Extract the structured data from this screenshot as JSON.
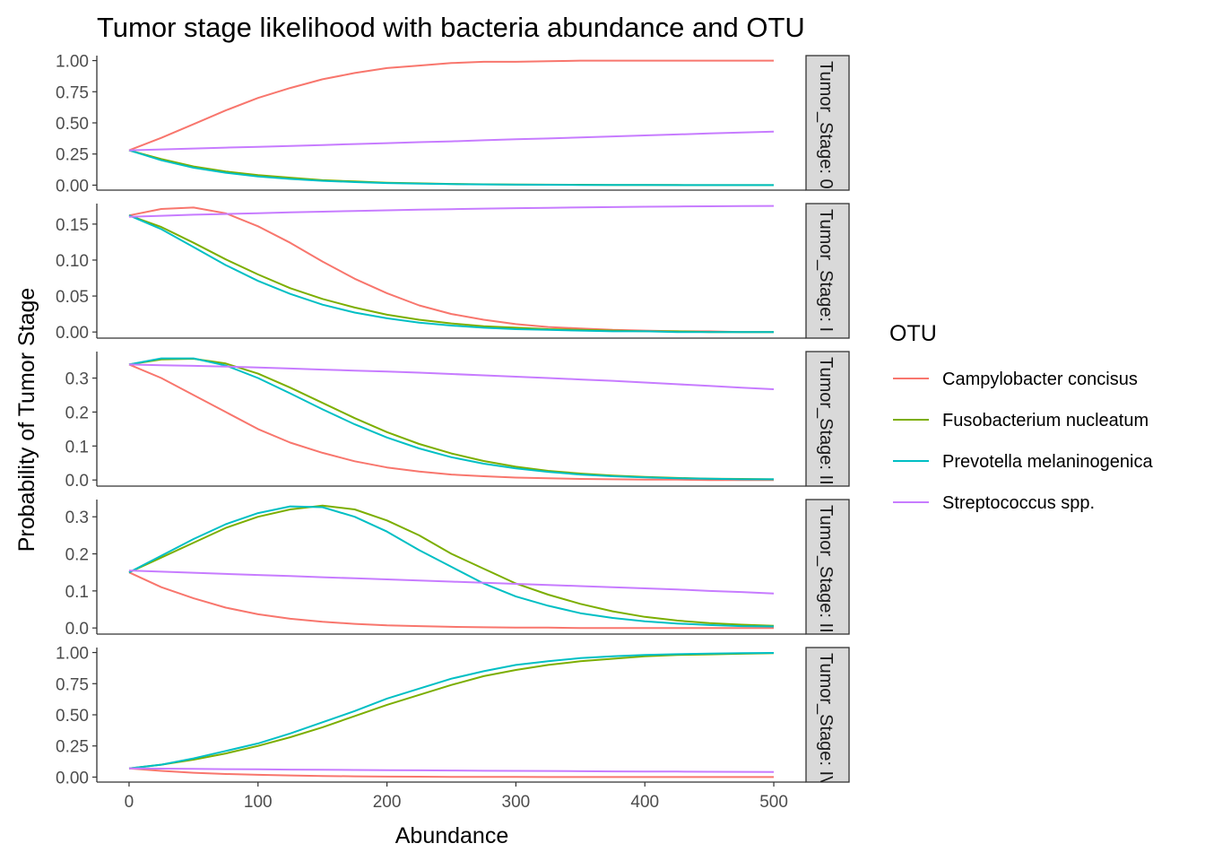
{
  "chart_data": {
    "type": "line",
    "title": "Tumor stage likelihood with bacteria abundance and OTU",
    "xlabel": "Abundance",
    "ylabel": "Probability of Tumor Stage",
    "xlim": [
      -25,
      525
    ],
    "x_ticks": [
      "0",
      "100",
      "200",
      "300",
      "400",
      "500"
    ],
    "x_tick_values": [
      0,
      100,
      200,
      300,
      400,
      500
    ],
    "legend": {
      "title": "OTU",
      "position": "right",
      "entries": [
        "Campylobacter concisus",
        "Fusobacterium nucleatum",
        "Prevotella melaninogenica",
        "Streptococcus spp."
      ]
    },
    "colors": {
      "Campylobacter concisus": "#F8766D",
      "Fusobacterium nucleatum": "#7CAE00",
      "Prevotella melaninogenica": "#00BFC4",
      "Streptococcus spp.": "#C77CFF"
    },
    "grid": false,
    "x": [
      0,
      25,
      50,
      75,
      100,
      125,
      150,
      175,
      200,
      225,
      250,
      275,
      300,
      325,
      350,
      375,
      400,
      425,
      450,
      475,
      500
    ],
    "panels": [
      {
        "strip": "Tumor_Stage: 0",
        "ylim": [
          -0.04,
          1.04
        ],
        "y_ticks": [
          "0.00",
          "0.25",
          "0.50",
          "0.75",
          "1.00"
        ],
        "y_tick_values": [
          0,
          0.25,
          0.5,
          0.75,
          1.0
        ],
        "series": [
          {
            "name": "Campylobacter concisus",
            "values": [
              0.28,
              0.38,
              0.49,
              0.6,
              0.7,
              0.78,
              0.85,
              0.9,
              0.94,
              0.96,
              0.98,
              0.99,
              0.99,
              0.995,
              1.0,
              1.0,
              1.0,
              1.0,
              1.0,
              1.0,
              1.0
            ]
          },
          {
            "name": "Fusobacterium nucleatum",
            "values": [
              0.28,
              0.21,
              0.15,
              0.11,
              0.08,
              0.06,
              0.04,
              0.03,
              0.02,
              0.015,
              0.01,
              0.007,
              0.005,
              0.004,
              0.003,
              0.002,
              0.001,
              0.001,
              0.0,
              0.0,
              0.0
            ]
          },
          {
            "name": "Prevotella melaninogenica",
            "values": [
              0.28,
              0.2,
              0.14,
              0.1,
              0.07,
              0.05,
              0.035,
              0.025,
              0.017,
              0.012,
              0.008,
              0.006,
              0.004,
              0.003,
              0.002,
              0.001,
              0.001,
              0.0,
              0.0,
              0.0,
              0.0
            ]
          },
          {
            "name": "Streptococcus spp.",
            "values": [
              0.28,
              0.287,
              0.294,
              0.301,
              0.308,
              0.315,
              0.322,
              0.33,
              0.337,
              0.345,
              0.352,
              0.36,
              0.368,
              0.375,
              0.383,
              0.391,
              0.399,
              0.407,
              0.415,
              0.423,
              0.43
            ]
          }
        ]
      },
      {
        "strip": "Tumor_Stage: I",
        "ylim": [
          -0.0085,
          0.1785
        ],
        "y_ticks": [
          "0.00",
          "0.05",
          "0.10",
          "0.15"
        ],
        "y_tick_values": [
          0,
          0.05,
          0.1,
          0.15
        ],
        "series": [
          {
            "name": "Campylobacter concisus",
            "values": [
              0.162,
              0.171,
              0.173,
              0.165,
              0.147,
              0.124,
              0.098,
              0.074,
              0.054,
              0.037,
              0.025,
              0.017,
              0.011,
              0.007,
              0.005,
              0.003,
              0.002,
              0.001,
              0.001,
              0.0,
              0.0
            ]
          },
          {
            "name": "Fusobacterium nucleatum",
            "values": [
              0.162,
              0.146,
              0.124,
              0.101,
              0.08,
              0.061,
              0.046,
              0.034,
              0.024,
              0.017,
              0.012,
              0.008,
              0.006,
              0.004,
              0.003,
              0.002,
              0.001,
              0.001,
              0.0,
              0.0,
              0.0
            ]
          },
          {
            "name": "Prevotella melaninogenica",
            "values": [
              0.162,
              0.143,
              0.118,
              0.093,
              0.071,
              0.053,
              0.038,
              0.027,
              0.019,
              0.013,
              0.009,
              0.006,
              0.004,
              0.003,
              0.002,
              0.001,
              0.001,
              0.0,
              0.0,
              0.0,
              0.0
            ]
          },
          {
            "name": "Streptococcus spp.",
            "values": [
              0.16,
              0.1615,
              0.163,
              0.164,
              0.1652,
              0.1663,
              0.1673,
              0.1683,
              0.1692,
              0.17,
              0.1708,
              0.1715,
              0.1721,
              0.1727,
              0.1732,
              0.1737,
              0.1741,
              0.1745,
              0.1748,
              0.1751,
              0.1753
            ]
          }
        ]
      },
      {
        "strip": "Tumor_Stage: II",
        "ylim": [
          -0.018,
          0.378
        ],
        "y_ticks": [
          "0.0",
          "0.1",
          "0.2",
          "0.3"
        ],
        "y_tick_values": [
          0,
          0.1,
          0.2,
          0.3
        ],
        "series": [
          {
            "name": "Campylobacter concisus",
            "values": [
              0.34,
              0.3,
              0.25,
              0.2,
              0.15,
              0.11,
              0.08,
              0.055,
              0.037,
              0.025,
              0.016,
              0.011,
              0.007,
              0.005,
              0.003,
              0.002,
              0.001,
              0.001,
              0.0,
              0.0,
              0.0
            ]
          },
          {
            "name": "Fusobacterium nucleatum",
            "values": [
              0.34,
              0.355,
              0.357,
              0.343,
              0.313,
              0.272,
              0.227,
              0.182,
              0.141,
              0.106,
              0.078,
              0.056,
              0.039,
              0.027,
              0.019,
              0.013,
              0.009,
              0.006,
              0.004,
              0.003,
              0.002
            ]
          },
          {
            "name": "Prevotella melaninogenica",
            "values": [
              0.34,
              0.358,
              0.358,
              0.337,
              0.3,
              0.255,
              0.208,
              0.164,
              0.125,
              0.093,
              0.067,
              0.048,
              0.034,
              0.024,
              0.016,
              0.011,
              0.008,
              0.005,
              0.004,
              0.002,
              0.002
            ]
          },
          {
            "name": "Streptococcus spp.",
            "values": [
              0.34,
              0.338,
              0.336,
              0.334,
              0.331,
              0.328,
              0.325,
              0.322,
              0.319,
              0.316,
              0.312,
              0.308,
              0.304,
              0.3,
              0.296,
              0.292,
              0.287,
              0.282,
              0.277,
              0.272,
              0.267
            ]
          }
        ]
      },
      {
        "strip": "Tumor_Stage: III",
        "ylim": [
          -0.0165,
          0.3465
        ],
        "y_ticks": [
          "0.0",
          "0.1",
          "0.2",
          "0.3"
        ],
        "y_tick_values": [
          0,
          0.1,
          0.2,
          0.3
        ],
        "series": [
          {
            "name": "Campylobacter concisus",
            "values": [
              0.15,
              0.11,
              0.08,
              0.055,
              0.037,
              0.025,
              0.017,
              0.011,
              0.007,
              0.005,
              0.003,
              0.002,
              0.001,
              0.001,
              0.0,
              0.0,
              0.0,
              0.0,
              0.0,
              0.0,
              0.0
            ]
          },
          {
            "name": "Fusobacterium nucleatum",
            "values": [
              0.15,
              0.19,
              0.23,
              0.27,
              0.3,
              0.32,
              0.33,
              0.32,
              0.29,
              0.25,
              0.2,
              0.16,
              0.12,
              0.09,
              0.065,
              0.045,
              0.03,
              0.02,
              0.013,
              0.009,
              0.006
            ]
          },
          {
            "name": "Prevotella melaninogenica",
            "values": [
              0.15,
              0.195,
              0.24,
              0.28,
              0.31,
              0.328,
              0.326,
              0.3,
              0.26,
              0.21,
              0.165,
              0.12,
              0.085,
              0.06,
              0.04,
              0.027,
              0.018,
              0.012,
              0.008,
              0.005,
              0.004
            ]
          },
          {
            "name": "Streptococcus spp.",
            "values": [
              0.155,
              0.152,
              0.149,
              0.146,
              0.143,
              0.14,
              0.137,
              0.134,
              0.131,
              0.128,
              0.125,
              0.122,
              0.119,
              0.116,
              0.113,
              0.11,
              0.107,
              0.104,
              0.1,
              0.097,
              0.093
            ]
          }
        ]
      },
      {
        "strip": "Tumor_Stage: IV",
        "ylim": [
          -0.04,
          1.04
        ],
        "y_ticks": [
          "0.00",
          "0.25",
          "0.50",
          "0.75",
          "1.00"
        ],
        "y_tick_values": [
          0,
          0.25,
          0.5,
          0.75,
          1.0
        ],
        "series": [
          {
            "name": "Campylobacter concisus",
            "values": [
              0.07,
              0.05,
              0.035,
              0.025,
              0.018,
              0.013,
              0.009,
              0.006,
              0.004,
              0.003,
              0.002,
              0.001,
              0.001,
              0.0,
              0.0,
              0.0,
              0.0,
              0.0,
              0.0,
              0.0,
              0.0
            ]
          },
          {
            "name": "Fusobacterium nucleatum",
            "values": [
              0.07,
              0.1,
              0.14,
              0.19,
              0.25,
              0.32,
              0.4,
              0.49,
              0.58,
              0.66,
              0.74,
              0.81,
              0.86,
              0.9,
              0.93,
              0.95,
              0.97,
              0.98,
              0.985,
              0.99,
              0.995
            ]
          },
          {
            "name": "Prevotella melaninogenica",
            "values": [
              0.07,
              0.1,
              0.15,
              0.21,
              0.27,
              0.35,
              0.44,
              0.53,
              0.63,
              0.71,
              0.79,
              0.85,
              0.9,
              0.93,
              0.955,
              0.97,
              0.98,
              0.987,
              0.992,
              0.995,
              0.997
            ]
          },
          {
            "name": "Streptococcus spp.",
            "values": [
              0.07,
              0.068,
              0.066,
              0.064,
              0.062,
              0.06,
              0.059,
              0.057,
              0.056,
              0.054,
              0.053,
              0.051,
              0.05,
              0.049,
              0.047,
              0.046,
              0.045,
              0.044,
              0.043,
              0.042,
              0.041
            ]
          }
        ]
      }
    ]
  }
}
